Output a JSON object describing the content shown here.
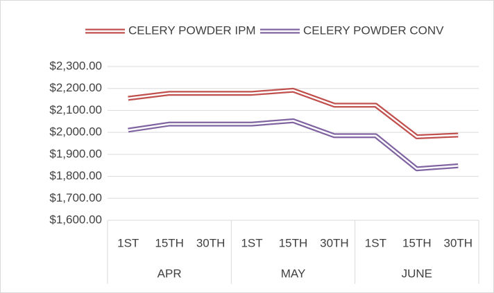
{
  "chart_data": {
    "type": "line",
    "categories": [
      "1ST",
      "15TH",
      "30TH",
      "1ST",
      "15TH",
      "30TH",
      "1ST",
      "15TH",
      "30TH"
    ],
    "groups": [
      "APR",
      "MAY",
      "JUNE"
    ],
    "series": [
      {
        "name": "CELERY POWDER IPM",
        "color": "#c0504d",
        "values": [
          2155,
          2178,
          2178,
          2178,
          2192,
          2124,
          2124,
          1980,
          1988
        ]
      },
      {
        "name": "CELERY POWDER CONV",
        "color": "#8064a2",
        "values": [
          2010,
          2038,
          2038,
          2038,
          2053,
          1985,
          1985,
          1834,
          1848
        ]
      }
    ],
    "ylim": [
      1600,
      2300
    ],
    "yticks": [
      {
        "value": 1600,
        "label": "$1,600.00"
      },
      {
        "value": 1700,
        "label": "$1,700.00"
      },
      {
        "value": 1800,
        "label": "$1,800.00"
      },
      {
        "value": 1900,
        "label": "$1,900.00"
      },
      {
        "value": 2000,
        "label": "$2,000.00"
      },
      {
        "value": 2100,
        "label": "$2,100.00"
      },
      {
        "value": 2200,
        "label": "$2,200.00"
      },
      {
        "value": 2300,
        "label": "$2,300.00"
      }
    ],
    "grid": true,
    "legend": "top"
  }
}
